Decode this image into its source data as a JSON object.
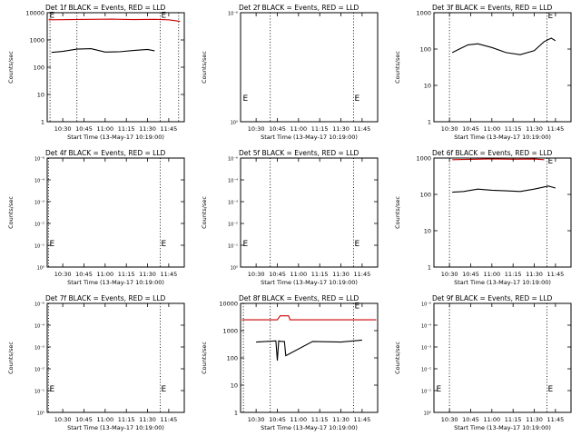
{
  "chart_data": [
    {
      "type": "line",
      "yscale": "log",
      "ylim": [
        1,
        10000
      ],
      "xlim": [
        "10:19",
        "11:56"
      ],
      "title": "Det 1f BLACK = Events, RED = LLD",
      "xlabel": "Start Time (13-May-17 10:19:00)",
      "ylabel": "Counts/sec",
      "x_ticks": [
        "10:30",
        "10:45",
        "11:00",
        "11:15",
        "11:30",
        "11:45"
      ],
      "y_ticks": [
        "1",
        "10",
        "100",
        "1000",
        "10000"
      ],
      "vlines": [
        "10:21",
        "10:40",
        "11:39",
        "11:52"
      ],
      "markers": [
        {
          "label": "E",
          "x": "10:20",
          "y": 9000
        },
        {
          "label": "E",
          "x": "11:39",
          "y": 9000
        }
      ],
      "series": [
        {
          "color": "#cc0000",
          "x": [
            "10:20",
            "10:35",
            "10:50",
            "11:05",
            "11:20",
            "11:35",
            "11:45",
            "11:53"
          ],
          "values": [
            5500,
            5600,
            5700,
            5800,
            5600,
            5700,
            5500,
            4800
          ]
        },
        {
          "color": "#000000",
          "x": [
            "10:22",
            "10:30",
            "10:40",
            "10:50",
            "11:00",
            "11:10",
            "11:20",
            "11:30",
            "11:35"
          ],
          "values": [
            350,
            380,
            460,
            480,
            360,
            370,
            410,
            450,
            400
          ]
        }
      ]
    },
    {
      "type": "line",
      "yscale": "log",
      "ylim": [
        1e-06,
        6e-06
      ],
      "xlim": [
        "10:19",
        "11:56"
      ],
      "title": "Det 2f BLACK = Events, RED = LLD",
      "xlabel": "Start Time (13-May-17 10:19:00)",
      "ylabel": "Counts/sec",
      "x_ticks": [
        "10:30",
        "10:45",
        "11:00",
        "11:15",
        "11:30",
        "11:45"
      ],
      "y_ticks": [
        "10⁰",
        "10⁻⁶"
      ],
      "vlines": [
        "10:40",
        "11:39"
      ],
      "markers": [
        {
          "label": "E",
          "x": "10:20",
          "y": 1.5e-06
        },
        {
          "label": "E",
          "x": "11:39",
          "y": 1.5e-06
        }
      ],
      "series": []
    },
    {
      "type": "line",
      "yscale": "log",
      "ylim": [
        1,
        1000
      ],
      "xlim": [
        "10:19",
        "11:56"
      ],
      "title": "Det 3f BLACK = Events, RED = LLD",
      "xlabel": "Start Time (13-May-17 10:19:00)",
      "ylabel": "Counts/sec",
      "x_ticks": [
        "10:30",
        "10:45",
        "11:00",
        "11:15",
        "11:30",
        "11:45"
      ],
      "y_ticks": [
        "1",
        "10",
        "100",
        "1000"
      ],
      "vlines": [
        "10:30",
        "11:39"
      ],
      "markers": [
        {
          "label": "E",
          "x": "11:39",
          "y": 900
        }
      ],
      "series": [
        {
          "color": "#000000",
          "x": [
            "10:32",
            "10:37",
            "10:43",
            "10:50",
            "11:00",
            "11:10",
            "11:20",
            "11:30",
            "11:37",
            "11:42",
            "11:45"
          ],
          "values": [
            80,
            100,
            130,
            140,
            110,
            80,
            70,
            90,
            160,
            200,
            170
          ]
        }
      ]
    },
    {
      "type": "line",
      "yscale": "log",
      "ylim": [
        1e-06,
        6e-06
      ],
      "xlim": [
        "10:19",
        "11:56"
      ],
      "title": "Det 4f BLACK = Events, RED = LLD",
      "xlabel": "Start Time (13-May-17 10:19:00)",
      "ylabel": "Counts/sec",
      "x_ticks": [
        "10:30",
        "10:45",
        "11:00",
        "11:15",
        "11:30",
        "11:45"
      ],
      "y_ticks": [
        "10⁰",
        "10⁻¹",
        "10⁻²",
        "10⁻³",
        "10⁻⁴",
        "10⁻⁶"
      ],
      "vlines": [
        "10:20",
        "11:39"
      ],
      "markers": [
        {
          "label": "E",
          "x": "10:20",
          "y": 1.5e-06
        },
        {
          "label": "E",
          "x": "11:39",
          "y": 1.5e-06
        }
      ],
      "series": []
    },
    {
      "type": "line",
      "yscale": "log",
      "ylim": [
        1e-06,
        6e-06
      ],
      "xlim": [
        "10:19",
        "11:56"
      ],
      "title": "Det 5f BLACK = Events, RED = LLD",
      "xlabel": "Start Time (13-May-17 10:19:00)",
      "ylabel": "Counts/sec",
      "x_ticks": [
        "10:30",
        "10:45",
        "11:00",
        "11:15",
        "11:30",
        "11:45"
      ],
      "y_ticks": [
        "10⁰",
        "10⁻¹",
        "10⁻²",
        "10⁻³",
        "10⁻⁴",
        "10⁻⁶"
      ],
      "vlines": [
        "10:40",
        "11:39"
      ],
      "markers": [
        {
          "label": "E",
          "x": "10:20",
          "y": 1.5e-06
        },
        {
          "label": "E",
          "x": "11:39",
          "y": 1.5e-06
        }
      ],
      "series": []
    },
    {
      "type": "line",
      "yscale": "log",
      "ylim": [
        1,
        1000
      ],
      "xlim": [
        "10:19",
        "11:56"
      ],
      "title": "Det 6f BLACK = Events, RED = LLD",
      "xlabel": "Start Time (13-May-17 10:19:00)",
      "ylabel": "Counts/sec",
      "x_ticks": [
        "10:30",
        "10:45",
        "11:00",
        "11:15",
        "11:30",
        "11:45"
      ],
      "y_ticks": [
        "1",
        "10",
        "100",
        "1000"
      ],
      "vlines": [
        "10:30",
        "11:39"
      ],
      "markers": [
        {
          "label": "E",
          "x": "11:39",
          "y": 900
        }
      ],
      "series": [
        {
          "color": "#cc0000",
          "x": [
            "10:32",
            "10:45",
            "11:00",
            "11:15",
            "11:30",
            "11:37"
          ],
          "values": [
            900,
            920,
            950,
            930,
            940,
            900
          ]
        },
        {
          "color": "#000000",
          "x": [
            "10:32",
            "10:40",
            "10:50",
            "11:00",
            "11:10",
            "11:20",
            "11:30",
            "11:40",
            "11:45"
          ],
          "values": [
            115,
            120,
            140,
            130,
            125,
            120,
            140,
            170,
            150
          ]
        }
      ]
    },
    {
      "type": "line",
      "yscale": "log",
      "ylim": [
        1e-06,
        6e-06
      ],
      "xlim": [
        "10:19",
        "11:56"
      ],
      "title": "Det 7f BLACK = Events, RED = LLD",
      "xlabel": "Start Time (13-May-17 10:19:00)",
      "ylabel": "Counts/sec",
      "x_ticks": [
        "10:30",
        "10:45",
        "11:00",
        "11:15",
        "11:30",
        "11:45"
      ],
      "y_ticks": [
        "10⁰",
        "10⁻¹",
        "10⁻²",
        "10⁻³",
        "10⁻⁴",
        "10⁻⁶"
      ],
      "vlines": [
        "10:20",
        "11:39"
      ],
      "markers": [
        {
          "label": "E",
          "x": "10:20",
          "y": 1.5e-06
        },
        {
          "label": "E",
          "x": "11:39",
          "y": 1.5e-06
        }
      ],
      "series": []
    },
    {
      "type": "line",
      "yscale": "log",
      "ylim": [
        1,
        10000
      ],
      "xlim": [
        "10:19",
        "11:56"
      ],
      "title": "Det 8f BLACK = Events, RED = LLD",
      "xlabel": "Start Time (13-May-17 10:19:00)",
      "ylabel": "Counts/sec",
      "x_ticks": [
        "10:30",
        "10:45",
        "11:00",
        "11:15",
        "11:30",
        "11:45"
      ],
      "y_ticks": [
        "1",
        "10",
        "100",
        "1000",
        "10000"
      ],
      "vlines": [
        "10:21",
        "10:40",
        "11:39"
      ],
      "markers": [
        {
          "label": "E",
          "x": "11:39",
          "y": 9000
        }
      ],
      "series": [
        {
          "color": "#cc0000",
          "x": [
            "10:20",
            "10:40",
            "10:45",
            "10:47",
            "10:53",
            "10:54",
            "11:10",
            "11:30",
            "11:55"
          ],
          "values": [
            2500,
            2500,
            2500,
            3500,
            3500,
            2500,
            2500,
            2500,
            2500
          ]
        },
        {
          "color": "#000000",
          "x": [
            "10:30",
            "10:44",
            "10:45",
            "10:46",
            "10:48",
            "10:50",
            "10:51",
            "11:10",
            "11:30",
            "11:45"
          ],
          "values": [
            380,
            420,
            80,
            420,
            400,
            400,
            120,
            400,
            380,
            450
          ]
        }
      ]
    },
    {
      "type": "line",
      "yscale": "log",
      "ylim": [
        1e-06,
        6e-06
      ],
      "xlim": [
        "10:19",
        "11:56"
      ],
      "title": "Det 9f BLACK = Events, RED = LLD",
      "xlabel": "Start Time (13-May-17 10:19:00)",
      "ylabel": "Counts/sec",
      "x_ticks": [
        "10:30",
        "10:45",
        "11:00",
        "11:15",
        "11:30",
        "11:45"
      ],
      "y_ticks": [
        "10⁰",
        "10⁻¹",
        "10⁻²",
        "10⁻³",
        "10⁻⁴",
        "10⁻⁶"
      ],
      "vlines": [
        "10:30",
        "11:39"
      ],
      "markers": [
        {
          "label": "E",
          "x": "10:20",
          "y": 1.5e-06
        },
        {
          "label": "E",
          "x": "11:39",
          "y": 1.5e-06
        }
      ],
      "series": []
    }
  ]
}
